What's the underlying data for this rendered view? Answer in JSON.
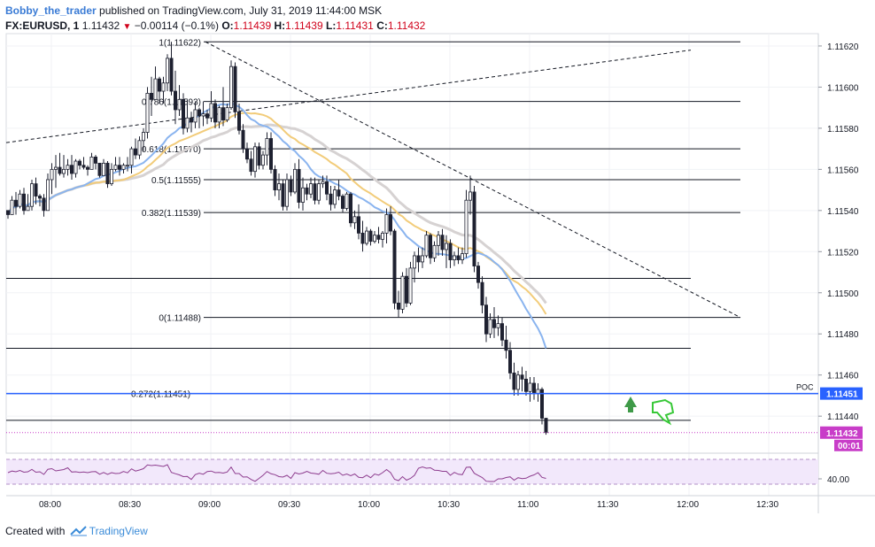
{
  "header": {
    "author": "Bobby_the_trader",
    "published": "published on TradingView.com, July 31, 2019 11:44:00 MSK",
    "symbol": "FX:EURUSD, 1",
    "last": "1.11432",
    "change": "−0.00114 (−0.1%)",
    "open_label": "O:",
    "open": "1.11439",
    "high_label": "H:",
    "high": "1.11439",
    "low_label": "L:",
    "low": "1.11431",
    "close_label": "C:",
    "close": "1.11432"
  },
  "footer": {
    "created_with": "Created with",
    "brand": "TradingView"
  },
  "colors": {
    "up": "#ffffff",
    "down": "#1e2130",
    "wick": "#1e2130",
    "poc": "#2962ff",
    "ma_blue": "#8ab4ef",
    "ma_gold": "#f2cc7a",
    "ma_gray": "#d6d2d2",
    "price_badge": "#c83dc8",
    "rsi_fill": "#f2e8fb",
    "rsi_line": "#8e3d8f",
    "arrow_green": "#3f9a48"
  },
  "chart_data": {
    "type": "candlestick",
    "y_axis": {
      "min": 1.11422,
      "max": 1.11626,
      "ticks": [
        "1.11620",
        "1.11600",
        "1.11580",
        "1.11560",
        "1.11540",
        "1.11520",
        "1.11500",
        "1.11480",
        "1.11460",
        "1.11440"
      ]
    },
    "x_axis": {
      "ticks": [
        "08:00",
        "08:30",
        "09:00",
        "09:30",
        "10:00",
        "10:30",
        "11:00",
        "11:30",
        "12:00",
        "12:30"
      ]
    },
    "fib_levels": [
      {
        "label": "1(1.11622)",
        "value": 1.11622
      },
      {
        "label": "0.786(1.11593)",
        "value": 1.11593
      },
      {
        "label": "0.618(1.11570)",
        "value": 1.1157
      },
      {
        "label": "0.5(1.11555)",
        "value": 1.11555
      },
      {
        "label": "0.382(1.11539)",
        "value": 1.11539
      },
      {
        "label": "0(1.11488)",
        "value": 1.11488
      },
      {
        "label": "0.272(1.11451)",
        "value": 1.11451
      }
    ],
    "extra_levels": [
      1.11507,
      1.11473,
      1.11438
    ],
    "poc": {
      "label": "POC",
      "value": 1.11451,
      "badge": "1.11451"
    },
    "last_price": {
      "value": 1.11432,
      "badge": "1.11432",
      "countdown": "00:01"
    },
    "rsi": {
      "tick": "40.00"
    },
    "candles": [
      [
        1.1154,
        1.1154,
        1.11536,
        1.11538
      ],
      [
        1.11538,
        1.11547,
        1.11538,
        1.11545
      ],
      [
        1.11545,
        1.11549,
        1.11538,
        1.11542
      ],
      [
        1.11542,
        1.1155,
        1.11541,
        1.11548
      ],
      [
        1.11548,
        1.11551,
        1.11538,
        1.1154
      ],
      [
        1.1154,
        1.11548,
        1.1154,
        1.11542
      ],
      [
        1.11542,
        1.11555,
        1.1154,
        1.11553
      ],
      [
        1.11553,
        1.11556,
        1.11543,
        1.11547
      ],
      [
        1.11547,
        1.11548,
        1.11542,
        1.11546
      ],
      [
        1.11546,
        1.11548,
        1.11537,
        1.1154
      ],
      [
        1.1154,
        1.11558,
        1.1154,
        1.11555
      ],
      [
        1.11555,
        1.11563,
        1.11548,
        1.1156
      ],
      [
        1.1156,
        1.11567,
        1.11551,
        1.11561
      ],
      [
        1.11561,
        1.11568,
        1.11557,
        1.11558
      ],
      [
        1.11558,
        1.11567,
        1.11556,
        1.1156
      ],
      [
        1.1156,
        1.11565,
        1.11557,
        1.11562
      ],
      [
        1.11562,
        1.11567,
        1.11555,
        1.11558
      ],
      [
        1.11558,
        1.11565,
        1.11556,
        1.11564
      ],
      [
        1.11564,
        1.11565,
        1.1156,
        1.11562
      ],
      [
        1.11562,
        1.11566,
        1.1156,
        1.11561
      ],
      [
        1.11561,
        1.11562,
        1.11557,
        1.1156
      ],
      [
        1.1156,
        1.11568,
        1.1156,
        1.11566
      ],
      [
        1.11566,
        1.11567,
        1.1156,
        1.11563
      ],
      [
        1.11563,
        1.11563,
        1.11556,
        1.11557
      ],
      [
        1.11557,
        1.11565,
        1.11557,
        1.11563
      ],
      [
        1.11563,
        1.11564,
        1.11551,
        1.11553
      ],
      [
        1.11553,
        1.11563,
        1.11552,
        1.1156
      ],
      [
        1.1156,
        1.11566,
        1.11559,
        1.11562
      ],
      [
        1.11562,
        1.11566,
        1.11557,
        1.1156
      ],
      [
        1.1156,
        1.11563,
        1.11558,
        1.11562
      ],
      [
        1.11562,
        1.11566,
        1.11559,
        1.11562
      ],
      [
        1.11562,
        1.11571,
        1.11558,
        1.1157
      ],
      [
        1.1157,
        1.11575,
        1.11565,
        1.11567
      ],
      [
        1.11567,
        1.11576,
        1.11565,
        1.11574
      ],
      [
        1.11574,
        1.1158,
        1.11569,
        1.11578
      ],
      [
        1.11578,
        1.116,
        1.11575,
        1.11597
      ],
      [
        1.11597,
        1.11605,
        1.11586,
        1.11594
      ],
      [
        1.11594,
        1.1161,
        1.11594,
        1.11604
      ],
      [
        1.11604,
        1.11605,
        1.11592,
        1.11598
      ],
      [
        1.11598,
        1.11605,
        1.11592,
        1.11602
      ],
      [
        1.11602,
        1.11616,
        1.11598,
        1.11614
      ],
      [
        1.11614,
        1.11622,
        1.11596,
        1.11598
      ],
      [
        1.11598,
        1.11608,
        1.11582,
        1.11589
      ],
      [
        1.11589,
        1.11601,
        1.11586,
        1.11594
      ],
      [
        1.11594,
        1.11597,
        1.11577,
        1.1158
      ],
      [
        1.1158,
        1.11594,
        1.11578,
        1.11585
      ],
      [
        1.11585,
        1.11588,
        1.11578,
        1.11583
      ],
      [
        1.11583,
        1.11593,
        1.1158,
        1.11589
      ],
      [
        1.11589,
        1.1159,
        1.1158,
        1.11586
      ],
      [
        1.11586,
        1.11593,
        1.11581,
        1.11587
      ],
      [
        1.11587,
        1.11589,
        1.11582,
        1.11585
      ],
      [
        1.11585,
        1.11598,
        1.11583,
        1.11592
      ],
      [
        1.11592,
        1.11594,
        1.1158,
        1.11583
      ],
      [
        1.11583,
        1.11591,
        1.1158,
        1.1159
      ],
      [
        1.1159,
        1.116,
        1.11581,
        1.11584
      ],
      [
        1.11584,
        1.11592,
        1.11583,
        1.1159
      ],
      [
        1.1159,
        1.11613,
        1.11589,
        1.1161
      ],
      [
        1.1161,
        1.11612,
        1.11585,
        1.11588
      ],
      [
        1.11588,
        1.11592,
        1.11577,
        1.11579
      ],
      [
        1.11579,
        1.11582,
        1.11568,
        1.1157
      ],
      [
        1.1157,
        1.11573,
        1.11563,
        1.11565
      ],
      [
        1.11565,
        1.11569,
        1.11557,
        1.11559
      ],
      [
        1.11559,
        1.11573,
        1.11556,
        1.11571
      ],
      [
        1.11571,
        1.11573,
        1.1156,
        1.11562
      ],
      [
        1.11562,
        1.11569,
        1.1156,
        1.11567
      ],
      [
        1.11567,
        1.11578,
        1.11562,
        1.11575
      ],
      [
        1.11575,
        1.11578,
        1.11558,
        1.1156
      ],
      [
        1.1156,
        1.11562,
        1.11547,
        1.1155
      ],
      [
        1.1155,
        1.11558,
        1.11545,
        1.11553
      ],
      [
        1.11553,
        1.11555,
        1.1154,
        1.11542
      ],
      [
        1.11542,
        1.11558,
        1.1154,
        1.11555
      ],
      [
        1.11555,
        1.11557,
        1.11547,
        1.11549
      ],
      [
        1.11549,
        1.11563,
        1.11548,
        1.1156
      ],
      [
        1.1156,
        1.11565,
        1.11541,
        1.11544
      ],
      [
        1.11544,
        1.11556,
        1.1154,
        1.11551
      ],
      [
        1.11551,
        1.11553,
        1.11545,
        1.11548
      ],
      [
        1.11548,
        1.11556,
        1.11546,
        1.11553
      ],
      [
        1.11553,
        1.11556,
        1.11543,
        1.11545
      ],
      [
        1.11545,
        1.11555,
        1.11543,
        1.11553
      ],
      [
        1.11553,
        1.11557,
        1.11551,
        1.11554
      ],
      [
        1.11554,
        1.11557,
        1.11545,
        1.11548
      ],
      [
        1.11548,
        1.11552,
        1.1154,
        1.11543
      ],
      [
        1.11543,
        1.11552,
        1.11541,
        1.1155
      ],
      [
        1.1155,
        1.11555,
        1.11545,
        1.11547
      ],
      [
        1.11547,
        1.11548,
        1.11539,
        1.11541
      ],
      [
        1.11541,
        1.11549,
        1.1154,
        1.11548
      ],
      [
        1.11548,
        1.11549,
        1.11532,
        1.11534
      ],
      [
        1.11534,
        1.1154,
        1.11531,
        1.11537
      ],
      [
        1.11537,
        1.11543,
        1.11526,
        1.11529
      ],
      [
        1.11529,
        1.11535,
        1.1152,
        1.11524
      ],
      [
        1.11524,
        1.11532,
        1.11523,
        1.1153
      ],
      [
        1.1153,
        1.11531,
        1.11523,
        1.11525
      ],
      [
        1.11525,
        1.1153,
        1.11524,
        1.11528
      ],
      [
        1.11528,
        1.11532,
        1.11524,
        1.11526
      ],
      [
        1.11526,
        1.1153,
        1.11522,
        1.11529
      ],
      [
        1.11529,
        1.11541,
        1.11524,
        1.11538
      ],
      [
        1.11538,
        1.11542,
        1.11528,
        1.1153
      ],
      [
        1.1153,
        1.11531,
        1.11492,
        1.11495
      ],
      [
        1.11495,
        1.11501,
        1.11488,
        1.11492
      ],
      [
        1.11492,
        1.1151,
        1.1149,
        1.11508
      ],
      [
        1.11508,
        1.11512,
        1.11493,
        1.11495
      ],
      [
        1.11495,
        1.11515,
        1.11494,
        1.11512
      ],
      [
        1.11512,
        1.1152,
        1.11505,
        1.11518
      ],
      [
        1.11518,
        1.11522,
        1.1151,
        1.11515
      ],
      [
        1.11515,
        1.11522,
        1.11512,
        1.11518
      ],
      [
        1.11518,
        1.1153,
        1.11517,
        1.11528
      ],
      [
        1.11528,
        1.11529,
        1.11514,
        1.11517
      ],
      [
        1.11517,
        1.11525,
        1.11515,
        1.11523
      ],
      [
        1.11523,
        1.1153,
        1.11518,
        1.11528
      ],
      [
        1.11528,
        1.11531,
        1.11518,
        1.11521
      ],
      [
        1.11521,
        1.11528,
        1.11512,
        1.11524
      ],
      [
        1.11524,
        1.11526,
        1.11512,
        1.11516
      ],
      [
        1.11516,
        1.1152,
        1.11513,
        1.11518
      ],
      [
        1.11518,
        1.11522,
        1.11514,
        1.11516
      ],
      [
        1.11516,
        1.11522,
        1.11514,
        1.11519
      ],
      [
        1.11519,
        1.1155,
        1.11517,
        1.11545
      ],
      [
        1.11545,
        1.11557,
        1.11538,
        1.11549
      ],
      [
        1.11549,
        1.11552,
        1.1151,
        1.11513
      ],
      [
        1.11513,
        1.11515,
        1.11502,
        1.11505
      ],
      [
        1.11505,
        1.11508,
        1.1149,
        1.11494
      ],
      [
        1.11494,
        1.11498,
        1.11476,
        1.1148
      ],
      [
        1.1148,
        1.1149,
        1.11478,
        1.11487
      ],
      [
        1.11487,
        1.11493,
        1.11478,
        1.11483
      ],
      [
        1.11483,
        1.11489,
        1.11479,
        1.11485
      ],
      [
        1.11485,
        1.11488,
        1.11474,
        1.11477
      ],
      [
        1.11477,
        1.11484,
        1.11468,
        1.11472
      ],
      [
        1.11472,
        1.11476,
        1.11458,
        1.11461
      ],
      [
        1.11461,
        1.11466,
        1.1145,
        1.11453
      ],
      [
        1.11453,
        1.11462,
        1.1145,
        1.1146
      ],
      [
        1.1146,
        1.11464,
        1.11452,
        1.11458
      ],
      [
        1.11458,
        1.11462,
        1.1145,
        1.11452
      ],
      [
        1.11452,
        1.11459,
        1.11447,
        1.11456
      ],
      [
        1.11456,
        1.11459,
        1.11448,
        1.11451
      ],
      [
        1.11451,
        1.11456,
        1.11447,
        1.11453
      ],
      [
        1.11453,
        1.11454,
        1.11436,
        1.11439
      ],
      [
        1.11439,
        1.11439,
        1.11431,
        1.11432
      ]
    ]
  }
}
